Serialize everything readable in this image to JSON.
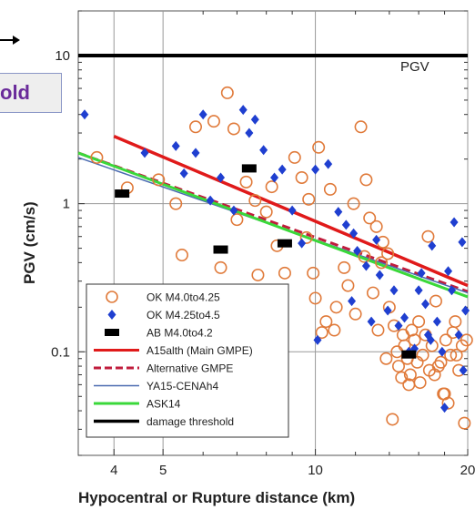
{
  "callout": {
    "text": "old"
  },
  "chart_data": {
    "type": "scatter",
    "title": "",
    "xlabel": "Hypocentral or Rupture distance (km)",
    "ylabel": "PGV (cm/s)",
    "panel_label": "PGV",
    "x_scale": "log",
    "y_scale": "log",
    "xlim": [
      3.4,
      20
    ],
    "ylim": [
      0.02,
      20
    ],
    "x_ticks": [
      {
        "value": 4,
        "label": "4"
      },
      {
        "value": 5,
        "label": "5"
      },
      {
        "value": 10,
        "label": "10"
      },
      {
        "value": 20,
        "label": "20"
      }
    ],
    "y_ticks": [
      {
        "value": 0.1,
        "label": "0.1"
      },
      {
        "value": 1,
        "label": "1"
      },
      {
        "value": 10,
        "label": "10"
      }
    ],
    "grid": true,
    "legend_position": "bottom-left",
    "colors": {
      "ok_small": "#e07a3a",
      "ok_large": "#1f3fd0",
      "ab": "#000000",
      "a15": "#e01a1a",
      "alt": "#c01c3c",
      "ya15": "#4a6ab0",
      "ask14": "#3ad83a",
      "damage": "#000000"
    },
    "legend": [
      {
        "key": "ok_small",
        "label": "OK M4.0to4.25",
        "marker": "circle"
      },
      {
        "key": "ok_large",
        "label": "OK M4.25to4.5",
        "marker": "diamond"
      },
      {
        "key": "ab",
        "label": "AB M4.0to4.2",
        "marker": "rect"
      },
      {
        "key": "a15",
        "label": "A15alth (Main GMPE)",
        "marker": "line"
      },
      {
        "key": "alt",
        "label": "Alternative GMPE",
        "marker": "dash"
      },
      {
        "key": "ya15",
        "label": "YA15-CENAh4",
        "marker": "thin"
      },
      {
        "key": "ask14",
        "label": "ASK14",
        "marker": "line"
      },
      {
        "key": "damage",
        "label": "damage threshold",
        "marker": "thick"
      }
    ],
    "series": [
      {
        "key": "a15",
        "name": "A15alth (Main GMPE)",
        "x": [
          4,
          20
        ],
        "y": [
          2.85,
          0.28
        ]
      },
      {
        "key": "alt",
        "name": "Alternative GMPE",
        "x": [
          3.4,
          20
        ],
        "y": [
          2.2,
          0.255
        ]
      },
      {
        "key": "ya15",
        "name": "YA15-CENAh4",
        "x": [
          3.4,
          20
        ],
        "y": [
          2.05,
          0.25
        ]
      },
      {
        "key": "ask14",
        "name": "ASK14",
        "x": [
          3.4,
          20
        ],
        "y": [
          2.2,
          0.235
        ]
      },
      {
        "key": "damage",
        "name": "damage threshold",
        "x": [
          3.4,
          20
        ],
        "y": [
          10,
          10
        ]
      }
    ],
    "points": {
      "ok_small": [
        [
          3.7,
          2.05
        ],
        [
          4.25,
          1.28
        ],
        [
          4.9,
          1.45
        ],
        [
          5.3,
          1.0
        ],
        [
          5.45,
          0.45
        ],
        [
          5.8,
          3.3
        ],
        [
          6.3,
          3.6
        ],
        [
          6.5,
          0.37
        ],
        [
          6.7,
          5.6
        ],
        [
          6.9,
          3.2
        ],
        [
          7.0,
          0.78
        ],
        [
          7.3,
          1.4
        ],
        [
          7.6,
          1.05
        ],
        [
          7.7,
          0.33
        ],
        [
          8.0,
          0.88
        ],
        [
          8.2,
          1.3
        ],
        [
          8.4,
          0.52
        ],
        [
          8.7,
          0.34
        ],
        [
          9.1,
          2.05
        ],
        [
          9.4,
          1.5
        ],
        [
          9.6,
          0.59
        ],
        [
          9.7,
          1.07
        ],
        [
          9.9,
          0.34
        ],
        [
          10.0,
          0.23
        ],
        [
          10.15,
          2.4
        ],
        [
          10.3,
          0.135
        ],
        [
          10.5,
          0.16
        ],
        [
          10.7,
          1.25
        ],
        [
          10.9,
          0.14
        ],
        [
          11.0,
          0.2
        ],
        [
          11.4,
          0.37
        ],
        [
          11.6,
          0.28
        ],
        [
          11.9,
          1.0
        ],
        [
          12.0,
          0.18
        ],
        [
          12.3,
          3.3
        ],
        [
          12.5,
          0.44
        ],
        [
          12.6,
          1.45
        ],
        [
          12.8,
          0.8
        ],
        [
          13.0,
          0.25
        ],
        [
          13.2,
          0.7
        ],
        [
          13.3,
          0.14
        ],
        [
          13.5,
          0.4
        ],
        [
          13.6,
          0.55
        ],
        [
          13.9,
          0.46
        ],
        [
          14.0,
          0.2
        ],
        [
          14.3,
          0.15
        ],
        [
          14.5,
          0.1
        ],
        [
          14.6,
          0.08
        ],
        [
          14.8,
          0.067
        ],
        [
          15.0,
          0.11
        ],
        [
          15.2,
          0.09
        ],
        [
          15.4,
          0.07
        ],
        [
          15.5,
          0.14
        ],
        [
          15.7,
          0.12
        ],
        [
          15.9,
          0.085
        ],
        [
          16.1,
          0.062
        ],
        [
          16.3,
          0.095
        ],
        [
          16.5,
          0.13
        ],
        [
          16.7,
          0.6
        ],
        [
          16.8,
          0.075
        ],
        [
          17.0,
          0.11
        ],
        [
          17.2,
          0.07
        ],
        [
          17.5,
          0.08
        ],
        [
          17.7,
          0.085
        ],
        [
          17.9,
          0.052
        ],
        [
          18.1,
          0.12
        ],
        [
          18.3,
          0.045
        ],
        [
          18.5,
          0.095
        ],
        [
          18.7,
          0.135
        ],
        [
          18.9,
          0.16
        ],
        [
          19.2,
          0.075
        ],
        [
          19.5,
          0.11
        ],
        [
          19.7,
          0.033
        ],
        [
          19.9,
          0.12
        ],
        [
          14.2,
          0.035
        ],
        [
          13.8,
          0.09
        ],
        [
          14.9,
          0.13
        ],
        [
          16.0,
          0.16
        ],
        [
          17.3,
          0.22
        ],
        [
          18.0,
          0.052
        ],
        [
          19.0,
          0.095
        ],
        [
          15.3,
          0.06
        ]
      ],
      "ok_large": [
        [
          3.5,
          4.0
        ],
        [
          4.6,
          2.2
        ],
        [
          5.3,
          2.45
        ],
        [
          5.5,
          1.6
        ],
        [
          5.8,
          2.2
        ],
        [
          6.0,
          4.0
        ],
        [
          6.2,
          1.05
        ],
        [
          6.5,
          1.5
        ],
        [
          6.9,
          0.9
        ],
        [
          7.2,
          4.3
        ],
        [
          7.4,
          3.0
        ],
        [
          7.6,
          3.7
        ],
        [
          7.9,
          2.3
        ],
        [
          8.3,
          1.5
        ],
        [
          8.6,
          1.7
        ],
        [
          9.0,
          0.9
        ],
        [
          9.4,
          0.54
        ],
        [
          10.0,
          1.7
        ],
        [
          10.6,
          1.85
        ],
        [
          11.1,
          0.88
        ],
        [
          11.5,
          0.72
        ],
        [
          11.9,
          0.63
        ],
        [
          12.1,
          0.48
        ],
        [
          12.6,
          0.38
        ],
        [
          12.9,
          0.16
        ],
        [
          13.2,
          0.57
        ],
        [
          13.4,
          0.33
        ],
        [
          13.9,
          0.19
        ],
        [
          14.3,
          0.26
        ],
        [
          14.6,
          0.15
        ],
        [
          15.0,
          0.17
        ],
        [
          15.3,
          0.1
        ],
        [
          15.7,
          0.105
        ],
        [
          16.0,
          0.26
        ],
        [
          16.2,
          0.34
        ],
        [
          16.5,
          0.21
        ],
        [
          16.7,
          0.13
        ],
        [
          17.0,
          0.52
        ],
        [
          17.4,
          0.16
        ],
        [
          17.8,
          0.1
        ],
        [
          18.0,
          0.042
        ],
        [
          18.3,
          0.35
        ],
        [
          18.6,
          0.26
        ],
        [
          18.8,
          0.75
        ],
        [
          19.2,
          0.13
        ],
        [
          19.5,
          0.55
        ],
        [
          19.6,
          0.075
        ],
        [
          19.8,
          0.19
        ],
        [
          10.1,
          0.12
        ],
        [
          11.8,
          0.22
        ],
        [
          16.9,
          0.12
        ]
      ],
      "ab": [
        [
          4.15,
          1.17
        ],
        [
          6.5,
          0.49
        ],
        [
          7.4,
          1.73
        ],
        [
          8.7,
          0.54
        ],
        [
          15.3,
          0.096
        ]
      ]
    }
  }
}
